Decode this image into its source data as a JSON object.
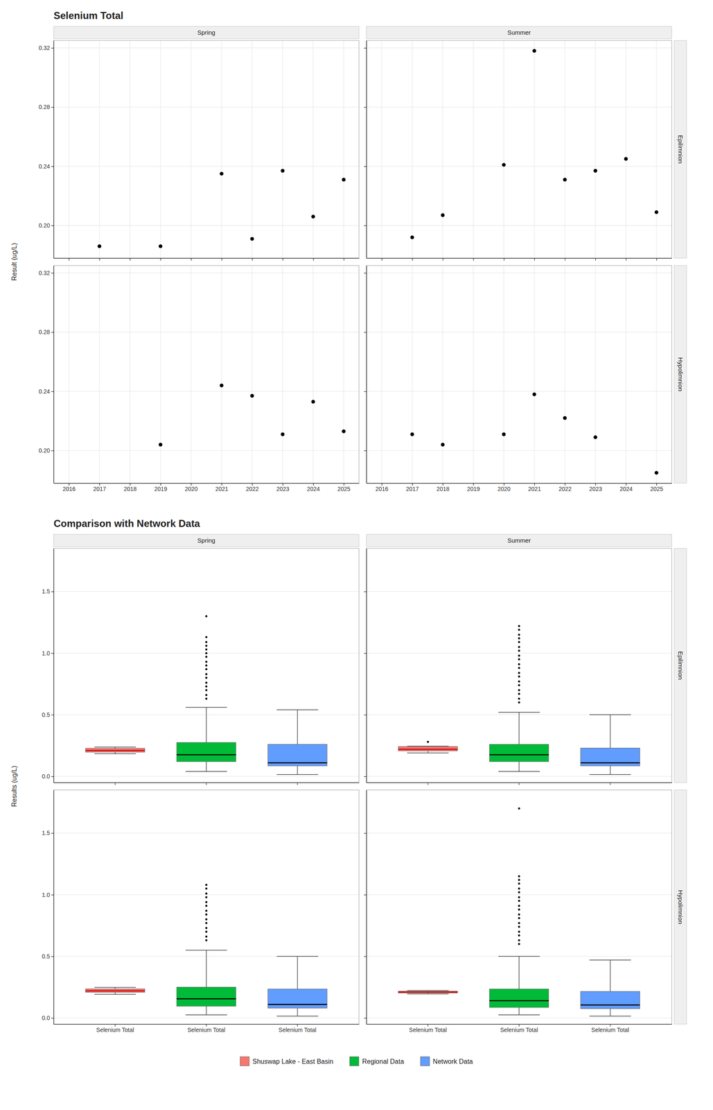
{
  "chart_data": [
    {
      "type": "scatter",
      "title": "Selenium Total",
      "y_label": "Result (ug/L)",
      "facet_columns": [
        "Spring",
        "Summer"
      ],
      "facet_rows": [
        "Epilimnion",
        "Hypolimnion"
      ],
      "color": "black",
      "grid": true,
      "xlim": [
        2015.5,
        2025.5
      ],
      "xticks": [
        2016,
        2017,
        2018,
        2019,
        2020,
        2021,
        2022,
        2023,
        2024,
        2025
      ],
      "ylim": [
        0.178,
        0.325
      ],
      "yticks": [
        {
          "value": 0.2,
          "label": "0.20"
        },
        0.24,
        0.28,
        0.32
      ],
      "panels": [
        [
          {
            "x": [
              2017,
              2019,
              2021,
              2022,
              2023,
              2024,
              2025
            ],
            "values": [
              0.186,
              0.186,
              0.235,
              0.191,
              0.237,
              0.206,
              0.231
            ]
          },
          {
            "x": [
              2017,
              2018,
              2020,
              2021,
              2022,
              2023,
              2024,
              2025
            ],
            "values": [
              0.192,
              0.207,
              0.241,
              0.318,
              0.231,
              0.237,
              0.245,
              0.209
            ]
          }
        ],
        [
          {
            "x": [
              2019,
              2021,
              2022,
              2023,
              2024,
              2025
            ],
            "values": [
              0.204,
              0.244,
              0.237,
              0.211,
              0.233,
              0.213
            ]
          },
          {
            "x": [
              2017,
              2018,
              2020,
              2021,
              2022,
              2023,
              2025
            ],
            "values": [
              0.211,
              0.204,
              0.211,
              0.238,
              0.222,
              0.209,
              0.185
            ]
          }
        ]
      ]
    },
    {
      "type": "box",
      "title": "Comparison with Network Data",
      "y_label": "Results (ug/L)",
      "facet_columns": [
        "Spring",
        "Summer"
      ],
      "facet_rows": [
        "Epilimnion",
        "Hypolimnion"
      ],
      "grid": "y",
      "legend": "bottom",
      "categories": [
        "Selenium Total",
        "Selenium Total",
        "Selenium Total"
      ],
      "series": [
        {
          "name": "Shuswap Lake - East Basin",
          "color": "#F8766D"
        },
        {
          "name": "Regional Data",
          "color": "#00BA38"
        },
        {
          "name": "Network Data",
          "color": "#619CFF"
        }
      ],
      "ylim": [
        -0.05,
        1.85
      ],
      "yticks": [
        {
          "value": 0.0,
          "label": "0.0"
        },
        0.5,
        {
          "value": 1.0,
          "label": "1.0"
        },
        1.5
      ],
      "panels": [
        [
          {
            "values": [
              {
                "median": 0.21,
                "q1": 0.197,
                "q3": 0.228,
                "whislo": 0.183,
                "whishi": 0.238,
                "fliers": []
              },
              {
                "median": 0.175,
                "q1": 0.12,
                "q3": 0.275,
                "whislo": 0.04,
                "whishi": 0.56,
                "fliers": [
                  0.63,
                  0.66,
                  0.7,
                  0.73,
                  0.76,
                  0.8,
                  0.83,
                  0.87,
                  0.9,
                  0.93,
                  0.97,
                  1.0,
                  1.03,
                  1.06,
                  1.09,
                  1.13,
                  1.3
                ]
              },
              {
                "median": 0.11,
                "q1": 0.085,
                "q3": 0.26,
                "whislo": 0.015,
                "whishi": 0.54,
                "fliers": []
              }
            ]
          },
          {
            "values": [
              {
                "median": 0.22,
                "q1": 0.207,
                "q3": 0.242,
                "whislo": 0.19,
                "whishi": 0.245,
                "fliers": [
                  0.28
                ]
              },
              {
                "median": 0.175,
                "q1": 0.12,
                "q3": 0.26,
                "whislo": 0.04,
                "whishi": 0.52,
                "fliers": [
                  0.6,
                  0.63,
                  0.67,
                  0.7,
                  0.74,
                  0.77,
                  0.81,
                  0.84,
                  0.88,
                  0.91,
                  0.95,
                  0.98,
                  1.02,
                  1.05,
                  1.09,
                  1.12,
                  1.15,
                  1.19,
                  1.22
                ]
              },
              {
                "median": 0.11,
                "q1": 0.085,
                "q3": 0.23,
                "whislo": 0.015,
                "whishi": 0.5,
                "fliers": []
              }
            ]
          }
        ],
        [
          {
            "values": [
              {
                "median": 0.22,
                "q1": 0.208,
                "q3": 0.236,
                "whislo": 0.192,
                "whishi": 0.248,
                "fliers": []
              },
              {
                "median": 0.155,
                "q1": 0.095,
                "q3": 0.25,
                "whislo": 0.025,
                "whishi": 0.55,
                "fliers": [
                  0.63,
                  0.66,
                  0.7,
                  0.73,
                  0.77,
                  0.8,
                  0.84,
                  0.87,
                  0.91,
                  0.94,
                  0.98,
                  1.01,
                  1.05,
                  1.08
                ]
              },
              {
                "median": 0.11,
                "q1": 0.08,
                "q3": 0.235,
                "whislo": 0.015,
                "whishi": 0.5,
                "fliers": []
              }
            ]
          },
          {
            "values": [
              {
                "median": 0.21,
                "q1": 0.202,
                "q3": 0.218,
                "whislo": 0.195,
                "whishi": 0.222,
                "fliers": []
              },
              {
                "median": 0.14,
                "q1": 0.085,
                "q3": 0.235,
                "whislo": 0.025,
                "whishi": 0.5,
                "fliers": [
                  0.6,
                  0.63,
                  0.67,
                  0.7,
                  0.74,
                  0.77,
                  0.81,
                  0.84,
                  0.88,
                  0.91,
                  0.95,
                  0.98,
                  1.02,
                  1.05,
                  1.09,
                  1.12,
                  1.15,
                  1.7
                ]
              },
              {
                "median": 0.105,
                "q1": 0.075,
                "q3": 0.215,
                "whislo": 0.015,
                "whishi": 0.47,
                "fliers": []
              }
            ]
          }
        ]
      ]
    }
  ]
}
